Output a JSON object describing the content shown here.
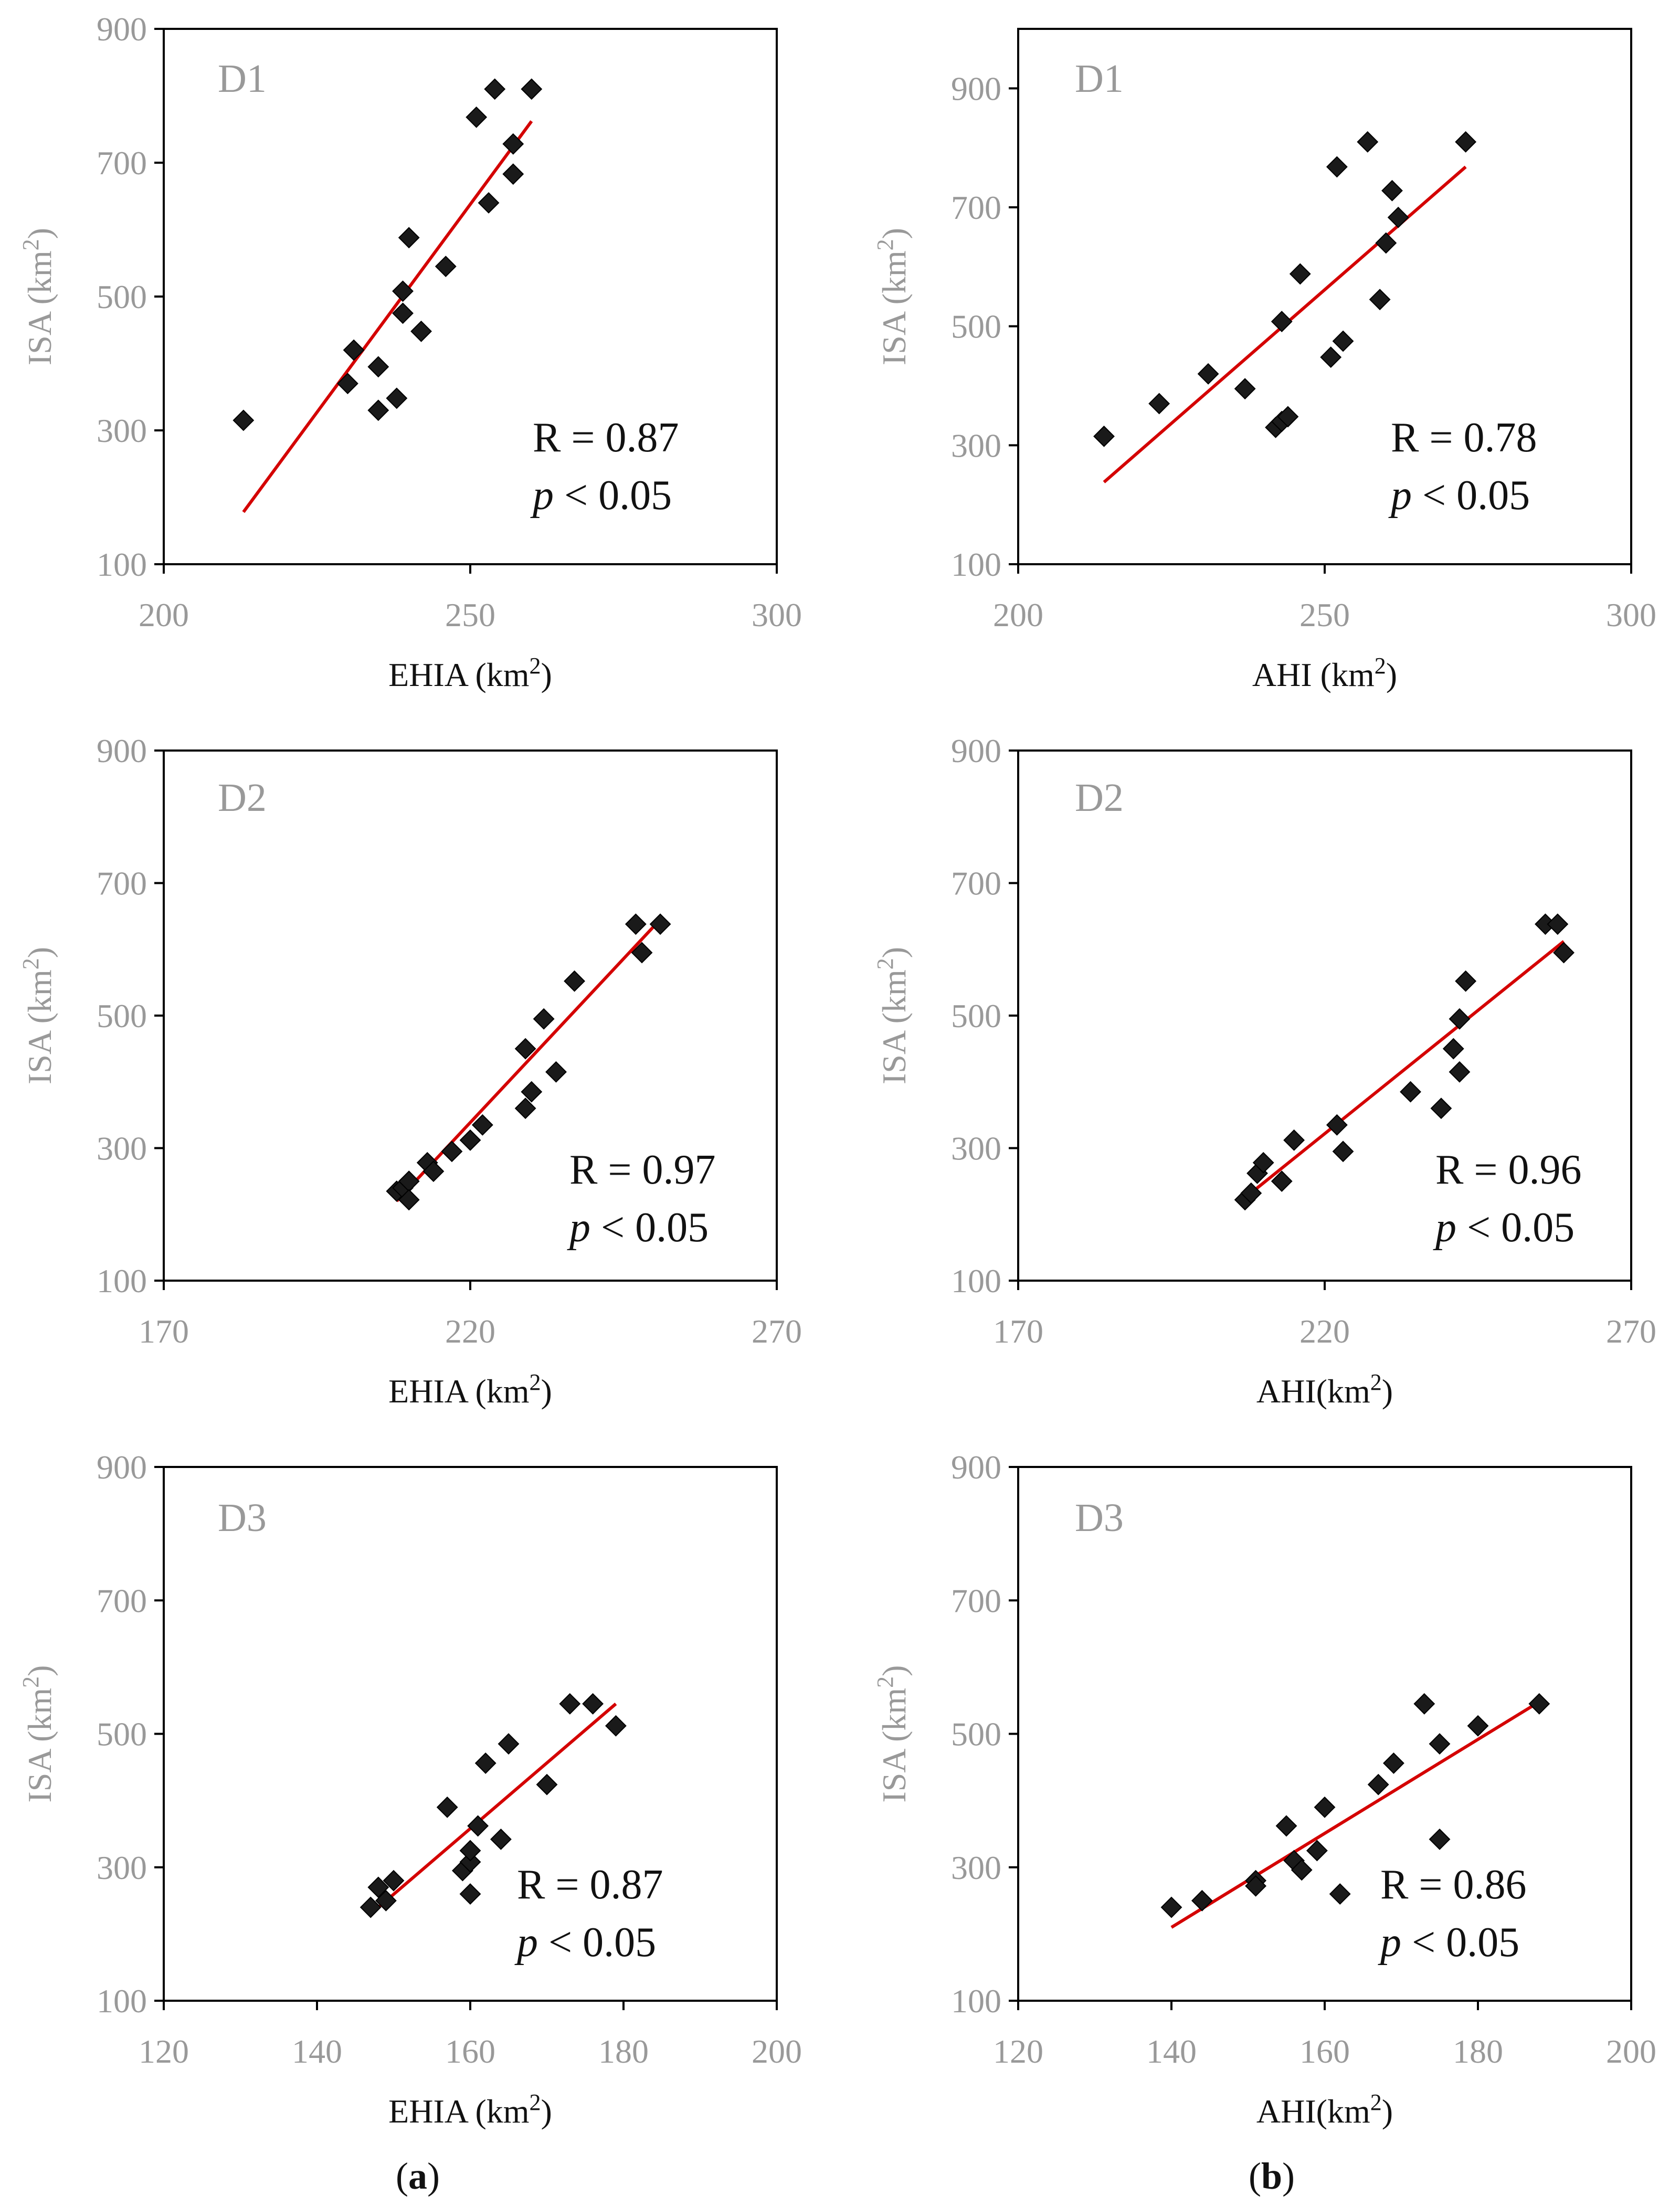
{
  "chart_data": [
    {
      "type": "scatter",
      "panel": "D1",
      "xlabel": "EHIA (km",
      "ylabel": "ISA (km",
      "unit_sup": "2",
      "unit_close": ")",
      "xlim": [
        200,
        300
      ],
      "xticks": [
        "200",
        "250",
        "300"
      ],
      "ylim": [
        100,
        900
      ],
      "yticks": [
        "100",
        "300",
        "500",
        "700",
        "900"
      ],
      "points": [
        [
          213,
          315
        ],
        [
          230,
          370
        ],
        [
          231,
          420
        ],
        [
          235,
          395
        ],
        [
          235,
          330
        ],
        [
          238,
          348
        ],
        [
          239,
          475
        ],
        [
          239,
          508
        ],
        [
          240,
          588
        ],
        [
          242,
          448
        ],
        [
          246,
          545
        ],
        [
          251,
          768
        ],
        [
          253,
          640
        ],
        [
          254,
          810
        ],
        [
          257,
          683
        ],
        [
          257,
          728
        ],
        [
          260,
          810
        ]
      ],
      "fit": [
        [
          213,
          178
        ],
        [
          260,
          762
        ]
      ],
      "r_text": "R = 0.87",
      "p_sym": "p",
      "p_rest": " < 0.05"
    },
    {
      "type": "scatter",
      "panel": "D1",
      "xlabel": "AHI (km",
      "ylabel": "ISA (km",
      "unit_sup": "2",
      "unit_close": ")",
      "xlim": [
        200,
        300
      ],
      "xticks": [
        "200",
        "250",
        "300"
      ],
      "ylim": [
        100,
        1000
      ],
      "yticks": [
        "100",
        "300",
        "500",
        "700",
        "900"
      ],
      "points": [
        [
          214,
          315
        ],
        [
          223,
          370
        ],
        [
          231,
          420
        ],
        [
          237,
          395
        ],
        [
          242,
          330
        ],
        [
          243,
          340
        ],
        [
          244,
          348
        ],
        [
          243,
          508
        ],
        [
          246,
          588
        ],
        [
          251,
          448
        ],
        [
          253,
          475
        ],
        [
          252,
          768
        ],
        [
          257,
          810
        ],
        [
          259,
          545
        ],
        [
          260,
          640
        ],
        [
          261,
          728
        ],
        [
          262,
          683
        ],
        [
          273,
          810
        ]
      ],
      "fit": [
        [
          214,
          238
        ],
        [
          273,
          768
        ]
      ],
      "r_text": "R = 0.78",
      "p_sym": "p",
      "p_rest": " < 0.05"
    },
    {
      "type": "scatter",
      "panel": "D2",
      "xlabel": "EHIA (km",
      "ylabel": "ISA (km",
      "unit_sup": "2",
      "unit_close": ")",
      "xlim": [
        170,
        270
      ],
      "xticks": [
        "170",
        "220",
        "270"
      ],
      "ylim": [
        100,
        900
      ],
      "yticks": [
        "100",
        "300",
        "500",
        "700",
        "900"
      ],
      "points": [
        [
          208,
          235
        ],
        [
          209,
          240
        ],
        [
          210,
          250
        ],
        [
          210,
          222
        ],
        [
          213,
          278
        ],
        [
          214,
          265
        ],
        [
          217,
          295
        ],
        [
          220,
          312
        ],
        [
          222,
          335
        ],
        [
          229,
          360
        ],
        [
          229,
          450
        ],
        [
          230,
          385
        ],
        [
          232,
          495
        ],
        [
          234,
          415
        ],
        [
          237,
          552
        ],
        [
          247,
          638
        ],
        [
          248,
          595
        ],
        [
          251,
          638
        ]
      ],
      "fit": [
        [
          208,
          220
        ],
        [
          251,
          645
        ]
      ],
      "r_text": "R = 0.97",
      "p_sym": "p",
      "p_rest": " < 0.05"
    },
    {
      "type": "scatter",
      "panel": "D2",
      "xlabel": "AHI(km",
      "ylabel": "ISA (km",
      "unit_sup": "2",
      "unit_close": ")",
      "xlim": [
        170,
        270
      ],
      "xticks": [
        "170",
        "220",
        "270"
      ],
      "ylim": [
        100,
        900
      ],
      "yticks": [
        "100",
        "300",
        "500",
        "700",
        "900"
      ],
      "points": [
        [
          207,
          222
        ],
        [
          208,
          232
        ],
        [
          209,
          262
        ],
        [
          210,
          278
        ],
        [
          213,
          250
        ],
        [
          215,
          312
        ],
        [
          222,
          335
        ],
        [
          223,
          295
        ],
        [
          234,
          385
        ],
        [
          239,
          360
        ],
        [
          241,
          450
        ],
        [
          242,
          415
        ],
        [
          242,
          495
        ],
        [
          243,
          552
        ],
        [
          256,
          638
        ],
        [
          258,
          638
        ],
        [
          259,
          595
        ]
      ],
      "fit": [
        [
          207,
          225
        ],
        [
          259,
          612
        ]
      ],
      "r_text": "R = 0.96",
      "p_sym": "p",
      "p_rest": " < 0.05"
    },
    {
      "type": "scatter",
      "panel": "D3",
      "xlabel": "EHIA (km",
      "ylabel": "ISA (km",
      "unit_sup": "2",
      "unit_close": ")",
      "xlim": [
        120,
        200
      ],
      "xticks": [
        "120",
        "140",
        "160",
        "180",
        "200"
      ],
      "ylim": [
        100,
        900
      ],
      "yticks": [
        "100",
        "300",
        "500",
        "700",
        "900"
      ],
      "points": [
        [
          147,
          240
        ],
        [
          148,
          270
        ],
        [
          149,
          250
        ],
        [
          150,
          280
        ],
        [
          157,
          390
        ],
        [
          159,
          295
        ],
        [
          160,
          308
        ],
        [
          160,
          325
        ],
        [
          160,
          260
        ],
        [
          161,
          362
        ],
        [
          162,
          456
        ],
        [
          164,
          342
        ],
        [
          165,
          485
        ],
        [
          170,
          424
        ],
        [
          173,
          545
        ],
        [
          176,
          545
        ],
        [
          179,
          512
        ]
      ],
      "fit": [
        [
          147,
          230
        ],
        [
          179,
          545
        ]
      ],
      "r_text": "R = 0.87",
      "p_sym": "p",
      "p_rest": " < 0.05"
    },
    {
      "type": "scatter",
      "panel": "D3",
      "xlabel": "AHI(km",
      "ylabel": "ISA (km",
      "unit_sup": "2",
      "unit_close": ")",
      "xlim": [
        120,
        200
      ],
      "xticks": [
        "120",
        "140",
        "160",
        "180",
        "200"
      ],
      "ylim": [
        100,
        900
      ],
      "yticks": [
        "100",
        "300",
        "500",
        "700",
        "900"
      ],
      "points": [
        [
          140,
          240
        ],
        [
          144,
          250
        ],
        [
          151,
          280
        ],
        [
          151,
          272
        ],
        [
          155,
          362
        ],
        [
          156,
          310
        ],
        [
          157,
          296
        ],
        [
          159,
          325
        ],
        [
          160,
          390
        ],
        [
          162,
          260
        ],
        [
          167,
          424
        ],
        [
          169,
          456
        ],
        [
          173,
          545
        ],
        [
          175,
          485
        ],
        [
          175,
          342
        ],
        [
          180,
          512
        ],
        [
          188,
          545
        ]
      ],
      "fit": [
        [
          140,
          210
        ],
        [
          188,
          548
        ]
      ],
      "r_text": "R = 0.86",
      "p_sym": "p",
      "p_rest": " < 0.05"
    }
  ],
  "subfigure_labels": {
    "a_open": "(",
    "a_letter": "a",
    "a_close": ")",
    "b_open": "(",
    "b_letter": "b",
    "b_close": ")"
  },
  "colors": {
    "marker": "#1a1a1a",
    "fit_line": "#d40000",
    "axis": "#000000",
    "tick_text": "#999999"
  }
}
